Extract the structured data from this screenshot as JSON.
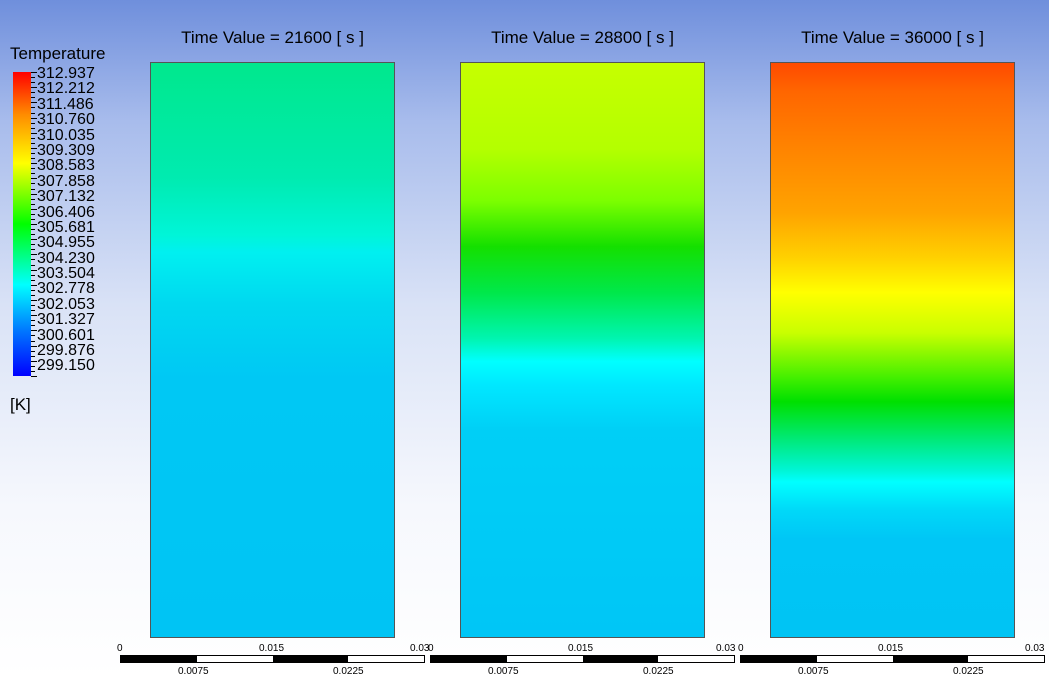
{
  "legend": {
    "title": "Temperature",
    "unit": "[K]",
    "labels": [
      "312.937",
      "312.212",
      "311.486",
      "310.760",
      "310.035",
      "309.309",
      "308.583",
      "307.858",
      "307.132",
      "306.406",
      "305.681",
      "304.955",
      "304.230",
      "303.504",
      "302.778",
      "302.053",
      "301.327",
      "300.601",
      "299.876",
      "299.150"
    ],
    "colors": {
      "max": "#ff0000",
      "min": "#0000ff"
    }
  },
  "panels": [
    {
      "title": "Time Value = 21600 [ s ]"
    },
    {
      "title": "Time Value = 28800 [ s ]"
    },
    {
      "title": "Time Value = 36000 [ s ]"
    }
  ],
  "axes": [
    {
      "top": [
        "0",
        "0.015",
        "0.03"
      ],
      "bottom": [
        "0.0075",
        "0.0225"
      ]
    },
    {
      "top": [
        "0",
        "0.015",
        "0.03"
      ],
      "bottom": [
        "0.0075",
        "0.0225"
      ]
    },
    {
      "top": [
        "0",
        "0.015",
        "0.03"
      ],
      "bottom": [
        "0.0075",
        "0.0225"
      ]
    }
  ]
}
